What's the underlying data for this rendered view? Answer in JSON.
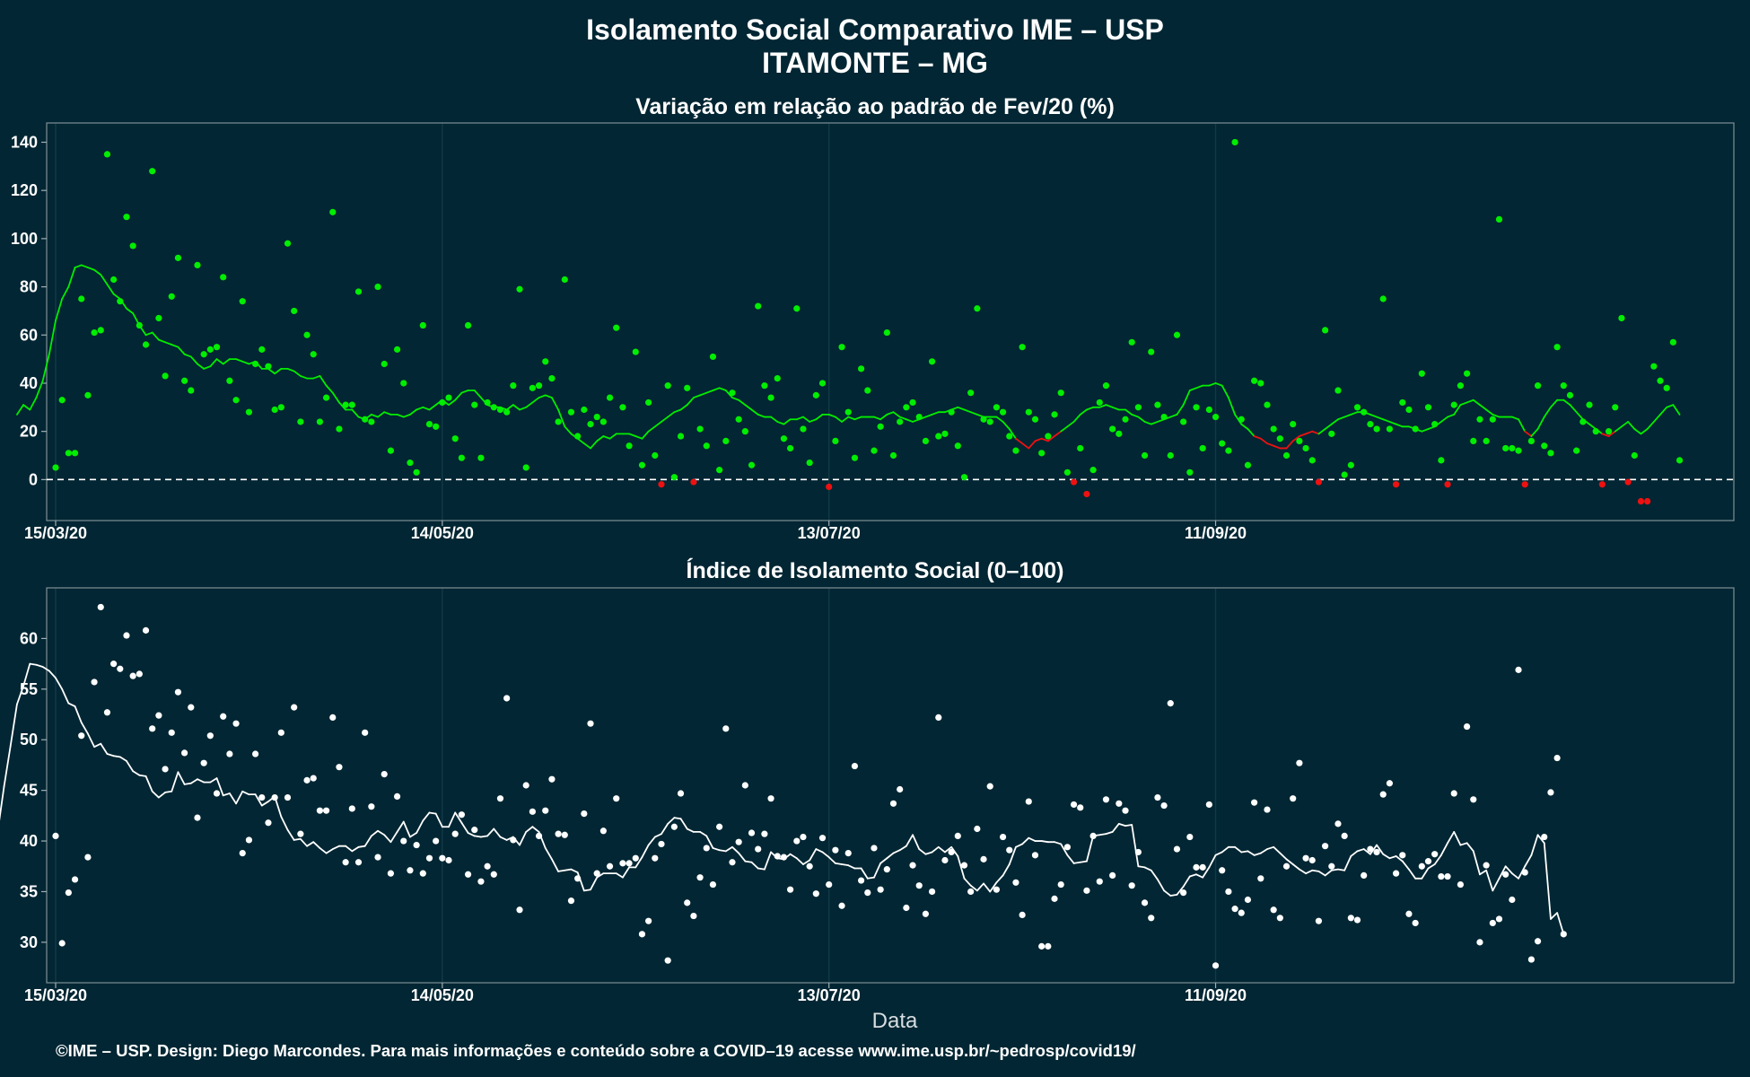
{
  "title_line1": "Isolamento Social Comparativo IME – USP",
  "title_line2": "ITAMONTE – MG",
  "xlabel": "Data",
  "footer": "©IME – USP. Design: Diego Marcondes. Para mais informações e conteúdo sobre a COVID–19 acesse www.ime.usp.br/~pedrosp/covid19/",
  "colors": {
    "background": "#022633",
    "positive": "#00ee00",
    "negative": "#ee1111",
    "index_series": "#ffffff",
    "zero_line": "#ffffff"
  },
  "chart_data": [
    {
      "type": "scatter",
      "title": "Variação em relação ao padrão de Fev/20 (%)",
      "x_start": "15/03/20",
      "x_end": "30/11/20",
      "x_ticks": [
        "15/03/20",
        "14/05/20",
        "13/07/20",
        "11/09/20"
      ],
      "y_ticks": [
        0,
        20,
        40,
        60,
        80,
        100,
        120,
        140
      ],
      "ylim": [
        -17,
        148
      ],
      "grid": true,
      "reference_line": 0,
      "series": [
        {
          "kind": "daily_points",
          "values": [
            5,
            33,
            11,
            11,
            75,
            35,
            61,
            62,
            135,
            83,
            74,
            109,
            97,
            64,
            56,
            128,
            67,
            43,
            76,
            92,
            41,
            37,
            89,
            52,
            54,
            55,
            84,
            41,
            33,
            74,
            28,
            48,
            54,
            47,
            29,
            30,
            98,
            70,
            24,
            60,
            52,
            24,
            34,
            111,
            21,
            31,
            31,
            78,
            25,
            24,
            80,
            48,
            12,
            54,
            40,
            7,
            3,
            64,
            23,
            22,
            32,
            34,
            17,
            9,
            64,
            31,
            9,
            32,
            30,
            29,
            28,
            39,
            79,
            5,
            38,
            39,
            49,
            42,
            24,
            83,
            28,
            18,
            29,
            23,
            26,
            24,
            34,
            63,
            30,
            14,
            53,
            6,
            32,
            10,
            -2,
            39,
            1,
            18,
            38,
            -1,
            21,
            14,
            51,
            4,
            16,
            36,
            25,
            20,
            6,
            72,
            39,
            34,
            42,
            17,
            13,
            71,
            21,
            7,
            35,
            40,
            -3,
            16,
            55,
            28,
            9,
            46,
            37,
            12,
            22,
            61,
            10,
            24,
            30,
            32,
            26,
            16,
            49,
            18,
            19,
            28,
            14,
            1,
            36,
            71,
            25,
            24,
            30,
            28,
            18,
            12,
            55,
            28,
            25,
            11,
            18,
            27,
            36,
            3,
            -1,
            13,
            -6,
            4,
            32,
            39,
            21,
            19,
            25,
            57,
            30,
            10,
            53,
            31,
            26,
            10,
            60,
            24,
            3,
            30,
            13,
            29,
            26,
            15,
            12,
            140,
            25,
            6,
            41,
            40,
            31,
            21,
            17,
            10,
            23,
            16,
            13,
            8,
            -1,
            62,
            19,
            37,
            2,
            6,
            30,
            28,
            23,
            21,
            75,
            21,
            -2,
            32,
            29,
            21,
            44,
            30,
            23,
            8,
            -2,
            31,
            39,
            44,
            16,
            25,
            16,
            25,
            108,
            13,
            13,
            12,
            -2,
            16,
            39,
            14,
            11,
            55,
            39,
            35,
            12,
            24,
            31,
            20,
            -2,
            20,
            30,
            67,
            -1,
            10,
            -9,
            -9,
            47,
            41,
            38,
            57,
            8
          ]
        },
        {
          "kind": "moving_average",
          "values": [
            27,
            31,
            29,
            34,
            41,
            52,
            66,
            75,
            80,
            88,
            89,
            88,
            87,
            85,
            81,
            77,
            75,
            71,
            69,
            64,
            60,
            61,
            58,
            57,
            56,
            55,
            52,
            51,
            48,
            46,
            47,
            50,
            48,
            50,
            50,
            49,
            48,
            49,
            46,
            46,
            44,
            46,
            46,
            45,
            43,
            42,
            42,
            43,
            39,
            36,
            32,
            29,
            29,
            26,
            25,
            27,
            26,
            28,
            27,
            27,
            26,
            27,
            29,
            30,
            29,
            31,
            33,
            31,
            33,
            36,
            37,
            37,
            34,
            31,
            30,
            30,
            29,
            31,
            29,
            30,
            32,
            34,
            35,
            34,
            29,
            22,
            19,
            17,
            15,
            13,
            16,
            18,
            17,
            19,
            19,
            19,
            18,
            17,
            20,
            22,
            24,
            26,
            28,
            29,
            31,
            34,
            35,
            36,
            37,
            38,
            37,
            34,
            33,
            31,
            29,
            27,
            26,
            26,
            24,
            23,
            25,
            25,
            26,
            24,
            25,
            27,
            27,
            26,
            24,
            26,
            25,
            26,
            26,
            26,
            25,
            27,
            28,
            26,
            25,
            24,
            25,
            26,
            27,
            28,
            28,
            29,
            30,
            29,
            28,
            27,
            26,
            26,
            26,
            24,
            21,
            17,
            15,
            13,
            16,
            17,
            16,
            18,
            20,
            22,
            24,
            27,
            29,
            30,
            30,
            31,
            30,
            29,
            29,
            27,
            26,
            24,
            23,
            24,
            25,
            26,
            27,
            31,
            37,
            38,
            39,
            39,
            40,
            39,
            34,
            27,
            23,
            21,
            18,
            17,
            15,
            14,
            13,
            13,
            16,
            18,
            19,
            20,
            19,
            21,
            23,
            25,
            26,
            27,
            28,
            28,
            27,
            26,
            25,
            24,
            23,
            22,
            22,
            21,
            20,
            21,
            22,
            24,
            26,
            27,
            31,
            32,
            33,
            31,
            29,
            27,
            26,
            26,
            26,
            25,
            20,
            18,
            21,
            26,
            30,
            33,
            33,
            31,
            28,
            25,
            23,
            21,
            19,
            18,
            20,
            22,
            24,
            21,
            19,
            21,
            24,
            27,
            30,
            31,
            27
          ]
        }
      ]
    },
    {
      "type": "scatter",
      "title": "Índice de Isolamento Social (0–100)",
      "x_start": "15/03/20",
      "x_end": "30/11/20",
      "x_ticks": [
        "15/03/20",
        "14/05/20",
        "13/07/20",
        "11/09/20"
      ],
      "y_ticks": [
        30,
        35,
        40,
        45,
        50,
        55,
        60
      ],
      "ylim": [
        26,
        65
      ],
      "grid": true,
      "series": [
        {
          "kind": "daily_points",
          "values": [
            40.5,
            29.9,
            34.9,
            36.2,
            50.4,
            38.4,
            55.7,
            63.1,
            52.7,
            57.5,
            57.0,
            60.3,
            56.3,
            56.5,
            60.8,
            51.1,
            52.4,
            47.1,
            50.7,
            54.7,
            48.7,
            53.2,
            42.3,
            47.7,
            50.4,
            44.7,
            52.3,
            48.6,
            51.6,
            38.8,
            40.1,
            48.6,
            44.3,
            41.8,
            44.3,
            50.7,
            44.3,
            53.2,
            40.7,
            46.0,
            46.2,
            43.0,
            43.0,
            52.2,
            47.3,
            37.9,
            43.2,
            37.9,
            50.7,
            43.4,
            38.4,
            46.6,
            36.8,
            44.4,
            40.0,
            37.1,
            39.6,
            36.8,
            38.3,
            40.0,
            38.3,
            38.1,
            40.7,
            42.6,
            36.7,
            41.1,
            36.0,
            37.5,
            36.7,
            44.2,
            54.1,
            40.1,
            33.2,
            45.5,
            42.9,
            40.5,
            43.0,
            46.1,
            40.7,
            40.6,
            34.1,
            36.3,
            42.7,
            51.6,
            36.8,
            41.0,
            37.5,
            44.2,
            37.8,
            37.8,
            38.3,
            30.8,
            32.1,
            38.3,
            39.7,
            28.2,
            41.4,
            44.7,
            33.9,
            32.6,
            36.4,
            39.3,
            35.7,
            41.4,
            51.1,
            37.9,
            39.9,
            45.5,
            40.8,
            39.2,
            40.7,
            44.2,
            38.5,
            38.4,
            35.2,
            40.0,
            40.4,
            37.5,
            34.8,
            40.3,
            35.7,
            39.1,
            33.6,
            38.8,
            47.4,
            36.1,
            34.9,
            39.3,
            35.2,
            37.2,
            43.7,
            45.1,
            33.4,
            37.6,
            35.6,
            32.8,
            35.0,
            52.2,
            38.1,
            38.9,
            40.5,
            37.6,
            35.0,
            41.2,
            38.2,
            45.4,
            35.2,
            40.4,
            39.1,
            35.9,
            32.7,
            43.9,
            38.6,
            29.6,
            29.6,
            34.3,
            35.7,
            39.4,
            43.6,
            43.3,
            35.1,
            40.5,
            36.0,
            44.1,
            36.6,
            43.7,
            43.0,
            35.6,
            38.9,
            33.9,
            32.4,
            44.3,
            43.5,
            53.6,
            39.2,
            34.9,
            40.4,
            37.4,
            37.4,
            43.6,
            27.7,
            37.1,
            35.0,
            33.3,
            32.9,
            34.2,
            43.8,
            36.3,
            43.1,
            33.2,
            32.4,
            37.5,
            44.2,
            47.7,
            38.3,
            38.1,
            32.1,
            39.5,
            37.5,
            41.7,
            40.5,
            32.4,
            32.2,
            36.6,
            39.2,
            38.9,
            44.6,
            45.7,
            36.8,
            38.6,
            32.8,
            31.9,
            37.5,
            38.0,
            38.7,
            36.5,
            36.5,
            44.7,
            35.7,
            51.3,
            44.1,
            30.0,
            37.6,
            31.9,
            32.3,
            36.7,
            34.2,
            56.9,
            36.9,
            28.3,
            30.1,
            40.4,
            44.8,
            48.2,
            30.8
          ]
        },
        {
          "kind": "moving_average",
          "values": [
            40.9,
            45.4,
            49.4,
            53.5,
            55.3,
            57.5,
            57.4,
            57.2,
            56.8,
            56.1,
            55.0,
            53.6,
            53.3,
            51.7,
            50.6,
            49.3,
            49.6,
            48.6,
            48.4,
            48.3,
            47.9,
            46.9,
            46.5,
            46.4,
            44.9,
            44.3,
            44.8,
            44.9,
            46.8,
            45.6,
            45.7,
            46.1,
            45.8,
            45.8,
            46.2,
            44.5,
            44.7,
            43.7,
            44.9,
            44.6,
            44.6,
            43.5,
            43.9,
            44.4,
            42.4,
            41.1,
            40.1,
            40.2,
            39.5,
            39.9,
            39.3,
            38.8,
            39.2,
            39.5,
            39.5,
            39.0,
            39.4,
            39.5,
            40.5,
            41.0,
            40.6,
            39.9,
            40.9,
            41.9,
            40.4,
            40.8,
            42.0,
            42.8,
            42.7,
            41.4,
            41.4,
            42.8,
            41.8,
            40.8,
            40.5,
            40.4,
            40.5,
            41.2,
            40.4,
            40.1,
            40.4,
            39.6,
            40.9,
            41.4,
            40.9,
            39.3,
            38.2,
            37.0,
            37.1,
            37.2,
            36.9,
            35.1,
            35.2,
            36.4,
            36.8,
            36.8,
            36.8,
            36.4,
            37.4,
            37.4,
            38.4,
            39.6,
            40.4,
            40.7,
            41.7,
            42.3,
            42.2,
            41.2,
            40.9,
            40.9,
            40.5,
            39.3,
            39.1,
            39.0,
            39.4,
            38.8,
            38.0,
            37.9,
            37.3,
            37.2,
            38.9,
            38.3,
            38.2,
            38.7,
            38.3,
            37.7,
            38.1,
            39.2,
            38.9,
            38.4,
            37.8,
            37.7,
            37.6,
            37.3,
            37.3,
            36.3,
            36.4,
            37.8,
            38.3,
            38.8,
            39.1,
            39.5,
            40.6,
            39.2,
            38.7,
            38.9,
            39.4,
            38.9,
            39.4,
            38.5,
            36.3,
            35.6,
            35.1,
            35.8,
            35.0,
            35.9,
            36.6,
            37.7,
            39.4,
            39.7,
            40.3,
            40.0,
            40.0,
            39.9,
            39.9,
            39.7,
            38.6,
            37.8,
            37.9,
            38.0,
            40.5,
            40.6,
            40.7,
            40.9,
            41.7,
            41.5,
            41.6,
            37.5,
            37.4,
            37.1,
            36.2,
            35.1,
            34.6,
            34.7,
            35.5,
            36.5,
            36.7,
            36.4,
            37.4,
            38.6,
            38.9,
            39.4,
            39.4,
            38.9,
            39.0,
            38.6,
            38.8,
            39.2,
            39.4,
            38.8,
            38.2,
            37.7,
            37.2,
            36.8,
            37.1,
            37.0,
            36.6,
            37.1,
            37.2,
            37.1,
            38.5,
            39.0,
            39.2,
            38.7,
            39.6,
            38.7,
            38.3,
            38.5,
            38.0,
            37.2,
            36.3,
            36.3,
            37.3,
            37.7,
            38.6,
            39.8,
            40.9,
            39.6,
            39.8,
            39.0,
            36.7,
            37.1,
            35.1,
            36.3,
            37.5,
            36.8,
            36.3,
            37.5,
            38.6,
            40.6,
            39.8,
            32.3,
            32.9,
            30.8
          ]
        }
      ]
    }
  ]
}
